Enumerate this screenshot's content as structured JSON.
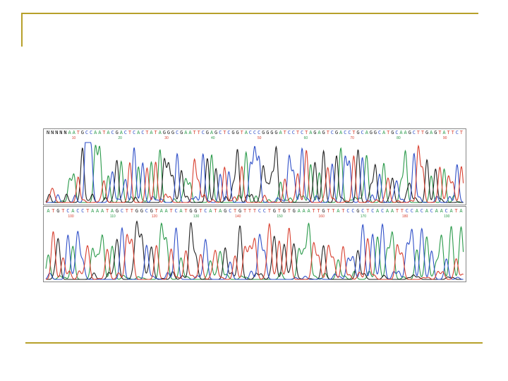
{
  "slide": {
    "accent_color": "#b7a02a",
    "figure": {
      "description_type": "dna-sequencing-chromatogram",
      "base_colors": {
        "A": "#2a9a4a",
        "C": "#3050c8",
        "G": "#222222",
        "T": "#d84030"
      },
      "panels": [
        {
          "sequence": "NNNNNAATGCCAATACGACTCACTATAGGGCGAATTCGAGCTCGGTACCCGGGGATCCTCTAGAGTCGACCTGCAGGCATGCAAGCTTGAGTATTCT",
          "positions": [
            "10",
            "20",
            "30",
            "40",
            "50",
            "60",
            "70",
            "80",
            "90"
          ]
        },
        {
          "sequence": "ATGTCACCTAAATAGCTTGGCGTAATCATGGTCATAGCTGTTTCCTGTGTGAAATTGTTATCCGCTCACAATTCCACACAACATA",
          "positions": [
            "100",
            "110",
            "120",
            "130",
            "140",
            "150",
            "160",
            "170",
            "180",
            "190"
          ]
        }
      ]
    }
  }
}
